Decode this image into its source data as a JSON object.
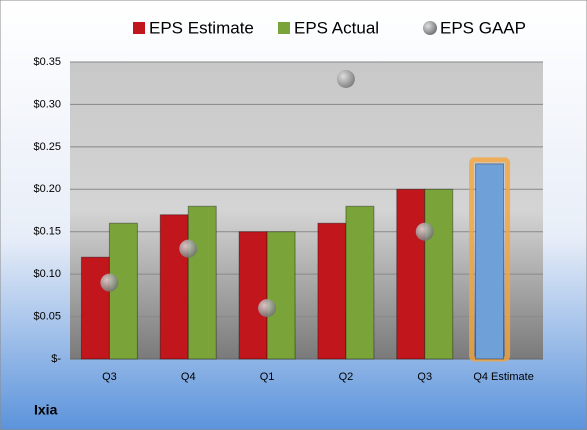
{
  "chart_data": {
    "type": "bar",
    "title": "Ixia",
    "categories": [
      "Q3",
      "Q4",
      "Q1",
      "Q2",
      "Q3",
      "Q4 Estimate"
    ],
    "series": [
      {
        "name": "EPS Estimate",
        "type": "bar",
        "color": "#c0161c",
        "colors": [
          "#c0161c",
          "#c0161c",
          "#c0161c",
          "#c0161c",
          "#c0161c",
          "#6fa0d8"
        ],
        "values": [
          0.12,
          0.17,
          0.15,
          0.16,
          0.2,
          0.23
        ]
      },
      {
        "name": "EPS Actual",
        "type": "bar",
        "color": "#7aa33a",
        "values": [
          0.16,
          0.18,
          0.15,
          0.18,
          0.2,
          null
        ]
      },
      {
        "name": "EPS GAAP",
        "type": "scatter",
        "color": "#9a9a9a",
        "values": [
          0.09,
          0.13,
          0.06,
          0.33,
          0.15,
          null
        ]
      }
    ],
    "ylim": [
      0,
      0.35
    ],
    "yticks": [
      {
        "value": 0,
        "label": "$-"
      },
      {
        "value": 0.05,
        "label": "$0.05"
      },
      {
        "value": 0.1,
        "label": "$0.10"
      },
      {
        "value": 0.15,
        "label": "$0.15"
      },
      {
        "value": 0.2,
        "label": "$0.20"
      },
      {
        "value": 0.25,
        "label": "$0.25"
      },
      {
        "value": 0.3,
        "label": "$0.30"
      },
      {
        "value": 0.35,
        "label": "$0.35"
      }
    ],
    "grid": true,
    "legend": "top"
  }
}
